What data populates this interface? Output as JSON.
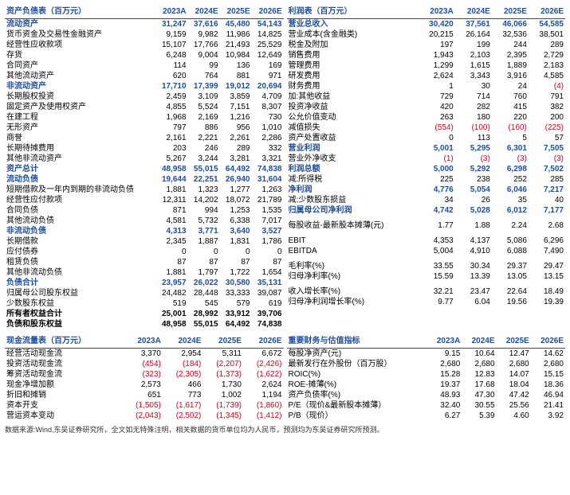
{
  "years": [
    "2023A",
    "2024E",
    "2025E",
    "2026E"
  ],
  "balance": {
    "title": "资产负债表（百万元）",
    "rows": [
      {
        "l": "流动资产",
        "v": [
          "31,247",
          "37,616",
          "45,480",
          "54,143"
        ],
        "cls": "section"
      },
      {
        "l": "货币资金及交易性金融资产",
        "v": [
          "9,159",
          "9,982",
          "11,986",
          "14,825"
        ]
      },
      {
        "l": "经营性应收款项",
        "v": [
          "15,107",
          "17,766",
          "21,493",
          "25,529"
        ]
      },
      {
        "l": "存货",
        "v": [
          "6,248",
          "9,004",
          "10,984",
          "12,649"
        ]
      },
      {
        "l": "合同资产",
        "v": [
          "114",
          "99",
          "136",
          "169"
        ]
      },
      {
        "l": "其他流动资产",
        "v": [
          "620",
          "764",
          "881",
          "971"
        ]
      },
      {
        "l": "非流动资产",
        "v": [
          "17,710",
          "17,399",
          "19,012",
          "20,694"
        ],
        "cls": "section"
      },
      {
        "l": "长期股权投资",
        "v": [
          "2,459",
          "3,109",
          "3,859",
          "4,709"
        ]
      },
      {
        "l": "固定资产及使用权资产",
        "v": [
          "4,855",
          "5,524",
          "7,151",
          "8,307"
        ]
      },
      {
        "l": "在建工程",
        "v": [
          "1,968",
          "2,169",
          "1,216",
          "730"
        ]
      },
      {
        "l": "无形资产",
        "v": [
          "797",
          "886",
          "956",
          "1,010"
        ]
      },
      {
        "l": "商誉",
        "v": [
          "2,161",
          "2,221",
          "2,261",
          "2,286"
        ]
      },
      {
        "l": "长期待摊费用",
        "v": [
          "203",
          "246",
          "289",
          "332"
        ]
      },
      {
        "l": "其他非流动资产",
        "v": [
          "5,267",
          "3,244",
          "3,281",
          "3,321"
        ]
      },
      {
        "l": "资产总计",
        "v": [
          "48,958",
          "55,015",
          "64,492",
          "74,838"
        ],
        "cls": "section"
      },
      {
        "l": "流动负债",
        "v": [
          "19,644",
          "22,251",
          "26,940",
          "31,604"
        ],
        "cls": "section"
      },
      {
        "l": "短期借款及一年内到期的非流动负债",
        "v": [
          "1,881",
          "1,323",
          "1,277",
          "1,263"
        ]
      },
      {
        "l": "经营性应付款项",
        "v": [
          "12,311",
          "14,202",
          "18,072",
          "21,789"
        ]
      },
      {
        "l": "合同负债",
        "v": [
          "871",
          "994",
          "1,253",
          "1,535"
        ]
      },
      {
        "l": "其他流动负债",
        "v": [
          "4,581",
          "5,732",
          "6,338",
          "7,017"
        ]
      },
      {
        "l": "非流动负债",
        "v": [
          "4,313",
          "3,771",
          "3,640",
          "3,527"
        ],
        "cls": "section"
      },
      {
        "l": "长期借款",
        "v": [
          "2,345",
          "1,887",
          "1,831",
          "1,786"
        ]
      },
      {
        "l": "应付债券",
        "v": [
          "0",
          "0",
          "0",
          "0"
        ]
      },
      {
        "l": "租赁负债",
        "v": [
          "87",
          "87",
          "87",
          "87"
        ]
      },
      {
        "l": "其他非流动负债",
        "v": [
          "1,881",
          "1,797",
          "1,722",
          "1,654"
        ]
      },
      {
        "l": "负债合计",
        "v": [
          "23,957",
          "26,022",
          "30,580",
          "35,131"
        ],
        "cls": "section"
      },
      {
        "l": "归属母公司股东权益",
        "v": [
          "24,482",
          "28,448",
          "33,333",
          "39,087"
        ]
      },
      {
        "l": "少数股东权益",
        "v": [
          "519",
          "545",
          "579",
          "619"
        ]
      },
      {
        "l": "所有者权益合计",
        "v": [
          "25,001",
          "28,992",
          "33,912",
          "39,706"
        ],
        "cls": "bold"
      },
      {
        "l": "负债和股东权益",
        "v": [
          "48,958",
          "55,015",
          "64,492",
          "74,838"
        ],
        "cls": "bold"
      }
    ]
  },
  "income": {
    "title": "利润表（百万元）",
    "rows": [
      {
        "l": "营业总收入",
        "v": [
          "30,420",
          "37,561",
          "46,066",
          "54,585"
        ],
        "cls": "section"
      },
      {
        "l": "营业成本(含金融类)",
        "v": [
          "20,215",
          "26,164",
          "32,536",
          "38,501"
        ]
      },
      {
        "l": "税金及附加",
        "v": [
          "197",
          "199",
          "244",
          "289"
        ]
      },
      {
        "l": "销售费用",
        "v": [
          "1,943",
          "2,103",
          "2,395",
          "2,729"
        ]
      },
      {
        "l": "管理费用",
        "v": [
          "1,299",
          "1,615",
          "1,889",
          "2,183"
        ]
      },
      {
        "l": "研发费用",
        "v": [
          "2,624",
          "3,343",
          "3,916",
          "4,585"
        ]
      },
      {
        "l": "财务费用",
        "v": [
          "1",
          "30",
          "24",
          "(4)"
        ]
      },
      {
        "l": "加:其他收益",
        "v": [
          "729",
          "714",
          "760",
          "791"
        ]
      },
      {
        "l": "投资净收益",
        "v": [
          "420",
          "282",
          "415",
          "382"
        ]
      },
      {
        "l": "公允价值变动",
        "v": [
          "263",
          "180",
          "220",
          "200"
        ]
      },
      {
        "l": "减值损失",
        "v": [
          "(554)",
          "(100)",
          "(160)",
          "(225)"
        ]
      },
      {
        "l": "资产处置收益",
        "v": [
          "0",
          "113",
          "5",
          "57"
        ]
      },
      {
        "l": "营业利润",
        "v": [
          "5,001",
          "5,295",
          "6,301",
          "7,505"
        ],
        "cls": "section"
      },
      {
        "l": "营业外净收支",
        "v": [
          "(1)",
          "(3)",
          "(3)",
          "(3)"
        ]
      },
      {
        "l": "利润总额",
        "v": [
          "5,000",
          "5,292",
          "6,298",
          "7,502"
        ],
        "cls": "section"
      },
      {
        "l": "减:所得税",
        "v": [
          "225",
          "238",
          "252",
          "285"
        ]
      },
      {
        "l": "净利润",
        "v": [
          "4,776",
          "5,054",
          "6,046",
          "7,217"
        ],
        "cls": "section"
      },
      {
        "l": "减:少数股东损益",
        "v": [
          "34",
          "26",
          "35",
          "40"
        ]
      },
      {
        "l": "归属母公司净利润",
        "v": [
          "4,742",
          "5,028",
          "6,012",
          "7,177"
        ],
        "cls": "section"
      },
      {
        "l": "",
        "v": [
          "",
          "",
          "",
          ""
        ],
        "cls": "spacer"
      },
      {
        "l": "每股收益-最新股本摊薄(元)",
        "v": [
          "1.77",
          "1.88",
          "2.24",
          "2.68"
        ]
      },
      {
        "l": "",
        "v": [
          "",
          "",
          "",
          ""
        ],
        "cls": "spacer"
      },
      {
        "l": "EBIT",
        "v": [
          "4,353",
          "4,137",
          "5,086",
          "6,296"
        ]
      },
      {
        "l": "EBITDA",
        "v": [
          "5,004",
          "4,910",
          "6,088",
          "7,490"
        ]
      },
      {
        "l": "",
        "v": [
          "",
          "",
          "",
          ""
        ],
        "cls": "spacer"
      },
      {
        "l": "毛利率(%)",
        "v": [
          "33.55",
          "30.34",
          "29.37",
          "29.47"
        ]
      },
      {
        "l": "归母净利率(%)",
        "v": [
          "15.59",
          "13.39",
          "13.05",
          "13.15"
        ]
      },
      {
        "l": "",
        "v": [
          "",
          "",
          "",
          ""
        ],
        "cls": "spacer"
      },
      {
        "l": "收入增长率(%)",
        "v": [
          "32.21",
          "23.47",
          "22.64",
          "18.49"
        ]
      },
      {
        "l": "归母净利润增长率(%)",
        "v": [
          "9.77",
          "6.04",
          "19.56",
          "19.39"
        ]
      }
    ]
  },
  "cashflow": {
    "title": "现金流量表（百万元）",
    "rows": [
      {
        "l": "经营活动现金流",
        "v": [
          "3,370",
          "2,954",
          "5,311",
          "6,672"
        ]
      },
      {
        "l": "投资活动现金流",
        "v": [
          "(454)",
          "(184)",
          "(2,207)",
          "(2,426)"
        ]
      },
      {
        "l": "筹资活动现金流",
        "v": [
          "(323)",
          "(2,305)",
          "(1,373)",
          "(1,622)"
        ]
      },
      {
        "l": "现金净增加额",
        "v": [
          "2,573",
          "466",
          "1,730",
          "2,624"
        ]
      },
      {
        "l": "折旧和摊销",
        "v": [
          "651",
          "773",
          "1,002",
          "1,194"
        ]
      },
      {
        "l": "资本开支",
        "v": [
          "(1,505)",
          "(1,617)",
          "(1,739)",
          "(1,860)"
        ]
      },
      {
        "l": "营运资本变动",
        "v": [
          "(2,043)",
          "(2,502)",
          "(1,345)",
          "(1,412)"
        ]
      }
    ]
  },
  "metrics": {
    "title": "重要财务与估值指标",
    "rows": [
      {
        "l": "每股净资产(元)",
        "v": [
          "9.15",
          "10.64",
          "12.47",
          "14.62"
        ]
      },
      {
        "l": "最新发行在外股份（百万股）",
        "v": [
          "2,680",
          "2,680",
          "2,680",
          "2,680"
        ]
      },
      {
        "l": "ROIC(%)",
        "v": [
          "15.28",
          "12.83",
          "14.07",
          "15.15"
        ]
      },
      {
        "l": "ROE-摊薄(%)",
        "v": [
          "19.37",
          "17.68",
          "18.04",
          "18.36"
        ]
      },
      {
        "l": "资产负债率(%)",
        "v": [
          "48.93",
          "47.30",
          "47.42",
          "46.94"
        ]
      },
      {
        "l": "P/E（现价&最新股本摊薄）",
        "v": [
          "32.40",
          "30.55",
          "25.56",
          "21.41"
        ]
      },
      {
        "l": "P/B（现价）",
        "v": [
          "6.27",
          "5.39",
          "4.60",
          "3.92"
        ]
      }
    ]
  },
  "footnote": "数据来源:Wind,东吴证券研究所，全文如无特殊注明，相关数据的货币单位均为人民币，预测均为东吴证券研究所预测。"
}
